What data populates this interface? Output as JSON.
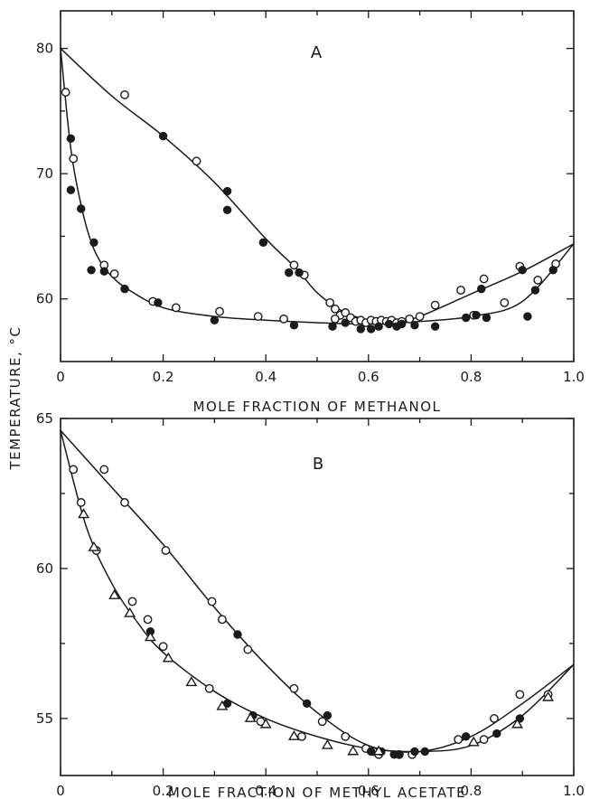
{
  "figure": {
    "ylabel": "TEMPERATURE, °C"
  },
  "chart_data": [
    {
      "type": "scatter",
      "panel_label": "A",
      "xlabel": "MOLE FRACTION OF METHANOL",
      "ylabel": "TEMPERATURE, °C",
      "xlim": [
        0,
        1.0
      ],
      "ylim": [
        55,
        83
      ],
      "xticks": [
        0,
        0.2,
        0.4,
        0.6,
        0.8,
        1.0
      ],
      "xtick_labels": [
        "0",
        "0.2",
        "0.4",
        "0.6",
        "0.8",
        "1.0"
      ],
      "yticks": [
        60,
        70,
        80
      ],
      "ytick_labels": [
        "60",
        "70",
        "80"
      ],
      "grid": false,
      "series": [
        {
          "marker": "open-circle",
          "points": [
            [
              0.01,
              76.5
            ],
            [
              0.025,
              71.2
            ],
            [
              0.085,
              62.7
            ],
            [
              0.105,
              62.0
            ],
            [
              0.125,
              76.3
            ],
            [
              0.18,
              59.8
            ],
            [
              0.225,
              59.3
            ],
            [
              0.265,
              71.0
            ],
            [
              0.31,
              59.0
            ],
            [
              0.385,
              58.6
            ],
            [
              0.435,
              58.4
            ],
            [
              0.455,
              62.7
            ],
            [
              0.475,
              61.9
            ],
            [
              0.525,
              59.7
            ],
            [
              0.535,
              59.2
            ],
            [
              0.545,
              58.7
            ],
            [
              0.555,
              58.9
            ],
            [
              0.565,
              58.5
            ],
            [
              0.575,
              58.2
            ],
            [
              0.585,
              58.3
            ],
            [
              0.595,
              58.1
            ],
            [
              0.605,
              58.3
            ],
            [
              0.615,
              58.2
            ],
            [
              0.625,
              58.3
            ],
            [
              0.635,
              58.2
            ],
            [
              0.645,
              58.3
            ],
            [
              0.655,
              58.1
            ],
            [
              0.665,
              58.2
            ],
            [
              0.68,
              58.4
            ],
            [
              0.7,
              58.6
            ],
            [
              0.73,
              59.5
            ],
            [
              0.78,
              60.7
            ],
            [
              0.805,
              58.7
            ],
            [
              0.825,
              61.6
            ],
            [
              0.865,
              59.7
            ],
            [
              0.895,
              62.6
            ],
            [
              0.93,
              61.5
            ],
            [
              0.965,
              62.8
            ],
            [
              0.535,
              58.4
            ]
          ]
        },
        {
          "marker": "filled-circle",
          "points": [
            [
              0.02,
              72.8
            ],
            [
              0.02,
              68.7
            ],
            [
              0.04,
              67.2
            ],
            [
              0.065,
              64.5
            ],
            [
              0.06,
              62.3
            ],
            [
              0.085,
              62.2
            ],
            [
              0.125,
              60.8
            ],
            [
              0.19,
              59.7
            ],
            [
              0.2,
              73.0
            ],
            [
              0.3,
              58.3
            ],
            [
              0.325,
              68.6
            ],
            [
              0.325,
              67.1
            ],
            [
              0.395,
              64.5
            ],
            [
              0.445,
              62.1
            ],
            [
              0.455,
              57.9
            ],
            [
              0.465,
              62.1
            ],
            [
              0.53,
              57.8
            ],
            [
              0.555,
              58.1
            ],
            [
              0.585,
              57.6
            ],
            [
              0.605,
              57.6
            ],
            [
              0.62,
              57.8
            ],
            [
              0.64,
              58.0
            ],
            [
              0.655,
              57.8
            ],
            [
              0.665,
              58.0
            ],
            [
              0.69,
              57.9
            ],
            [
              0.73,
              57.8
            ],
            [
              0.79,
              58.5
            ],
            [
              0.81,
              58.7
            ],
            [
              0.82,
              60.8
            ],
            [
              0.83,
              58.5
            ],
            [
              0.9,
              62.3
            ],
            [
              0.91,
              58.6
            ],
            [
              0.925,
              60.7
            ],
            [
              0.96,
              62.3
            ]
          ]
        }
      ],
      "fitted_curves": [
        {
          "name": "",
          "points": [
            [
              0,
              80
            ],
            [
              0.1,
              76.2
            ],
            [
              0.2,
              73
            ],
            [
              0.3,
              69.3
            ],
            [
              0.4,
              64.8
            ],
            [
              0.46,
              62.4
            ],
            [
              0.5,
              60.5
            ],
            [
              0.55,
              59.0
            ],
            [
              0.6,
              58.3
            ],
            [
              0.65,
              58.1
            ],
            [
              0.7,
              58.6
            ],
            [
              0.8,
              60.4
            ],
            [
              0.9,
              62.2
            ],
            [
              1.0,
              64.4
            ]
          ]
        },
        {
          "name": "",
          "points": [
            [
              0,
              80
            ],
            [
              0.02,
              72
            ],
            [
              0.04,
              67.5
            ],
            [
              0.06,
              64.5
            ],
            [
              0.08,
              62.8
            ],
            [
              0.1,
              61.8
            ],
            [
              0.13,
              60.8
            ],
            [
              0.2,
              59.3
            ],
            [
              0.3,
              58.6
            ],
            [
              0.4,
              58.3
            ],
            [
              0.5,
              58.1
            ],
            [
              0.6,
              58.0
            ],
            [
              0.7,
              58.2
            ],
            [
              0.8,
              58.6
            ],
            [
              0.9,
              59.8
            ],
            [
              1.0,
              64.4
            ]
          ]
        }
      ]
    },
    {
      "type": "scatter",
      "panel_label": "B",
      "xlabel": "MOLE FRACTION OF METHYL ACETATE",
      "ylabel": "TEMPERATURE, °C",
      "xlim": [
        0,
        1.0
      ],
      "ylim": [
        53.1,
        65
      ],
      "xticks": [
        0,
        0.2,
        0.4,
        0.6,
        0.8,
        1.0
      ],
      "xtick_labels": [
        "0",
        "0.2",
        "0.4",
        "0.6",
        "0.8",
        "1.0"
      ],
      "yticks": [
        55,
        60,
        65
      ],
      "ytick_labels": [
        "55",
        "60",
        "65"
      ],
      "grid": false,
      "series": [
        {
          "marker": "open-circle",
          "points": [
            [
              0.025,
              63.3
            ],
            [
              0.04,
              62.2
            ],
            [
              0.07,
              60.6
            ],
            [
              0.085,
              63.3
            ],
            [
              0.125,
              62.2
            ],
            [
              0.14,
              58.9
            ],
            [
              0.17,
              58.3
            ],
            [
              0.2,
              57.4
            ],
            [
              0.205,
              60.6
            ],
            [
              0.29,
              56.0
            ],
            [
              0.295,
              58.9
            ],
            [
              0.315,
              58.3
            ],
            [
              0.365,
              57.3
            ],
            [
              0.39,
              54.9
            ],
            [
              0.455,
              56.0
            ],
            [
              0.47,
              54.4
            ],
            [
              0.51,
              54.9
            ],
            [
              0.555,
              54.4
            ],
            [
              0.595,
              54.0
            ],
            [
              0.61,
              53.9
            ],
            [
              0.62,
              53.8
            ],
            [
              0.66,
              53.8
            ],
            [
              0.685,
              53.8
            ],
            [
              0.775,
              54.3
            ],
            [
              0.825,
              54.3
            ],
            [
              0.845,
              55.0
            ],
            [
              0.895,
              55.8
            ],
            [
              0.95,
              55.8
            ]
          ]
        },
        {
          "marker": "filled-circle",
          "points": [
            [
              0.175,
              57.9
            ],
            [
              0.325,
              55.5
            ],
            [
              0.345,
              57.8
            ],
            [
              0.375,
              55.1
            ],
            [
              0.48,
              55.5
            ],
            [
              0.52,
              55.1
            ],
            [
              0.605,
              53.9
            ],
            [
              0.625,
              53.9
            ],
            [
              0.65,
              53.8
            ],
            [
              0.66,
              53.8
            ],
            [
              0.69,
              53.9
            ],
            [
              0.71,
              53.9
            ],
            [
              0.79,
              54.4
            ],
            [
              0.85,
              54.5
            ],
            [
              0.895,
              55.0
            ]
          ]
        },
        {
          "marker": "open-triangle",
          "points": [
            [
              0.045,
              61.8
            ],
            [
              0.065,
              60.7
            ],
            [
              0.105,
              59.1
            ],
            [
              0.135,
              58.5
            ],
            [
              0.175,
              57.7
            ],
            [
              0.21,
              57.0
            ],
            [
              0.255,
              56.2
            ],
            [
              0.315,
              55.4
            ],
            [
              0.37,
              55.0
            ],
            [
              0.4,
              54.8
            ],
            [
              0.455,
              54.4
            ],
            [
              0.52,
              54.1
            ],
            [
              0.57,
              53.9
            ],
            [
              0.62,
              53.9
            ],
            [
              0.805,
              54.2
            ],
            [
              0.89,
              54.8
            ],
            [
              0.95,
              55.7
            ]
          ]
        }
      ],
      "fitted_curves": [
        {
          "name": "",
          "points": [
            [
              0,
              64.6
            ],
            [
              0.1,
              62.7
            ],
            [
              0.2,
              60.8
            ],
            [
              0.3,
              58.7
            ],
            [
              0.4,
              56.8
            ],
            [
              0.5,
              55.2
            ],
            [
              0.6,
              54.1
            ],
            [
              0.7,
              53.9
            ],
            [
              0.8,
              54.4
            ],
            [
              0.9,
              55.5
            ],
            [
              1.0,
              56.8
            ]
          ]
        },
        {
          "name": "",
          "points": [
            [
              0,
              64.6
            ],
            [
              0.05,
              61.4
            ],
            [
              0.1,
              59.5
            ],
            [
              0.15,
              58.2
            ],
            [
              0.2,
              57.2
            ],
            [
              0.3,
              55.9
            ],
            [
              0.4,
              55.0
            ],
            [
              0.5,
              54.4
            ],
            [
              0.6,
              54.0
            ],
            [
              0.7,
              53.9
            ],
            [
              0.8,
              54.1
            ],
            [
              0.9,
              55.1
            ],
            [
              1.0,
              56.8
            ]
          ]
        }
      ]
    }
  ]
}
